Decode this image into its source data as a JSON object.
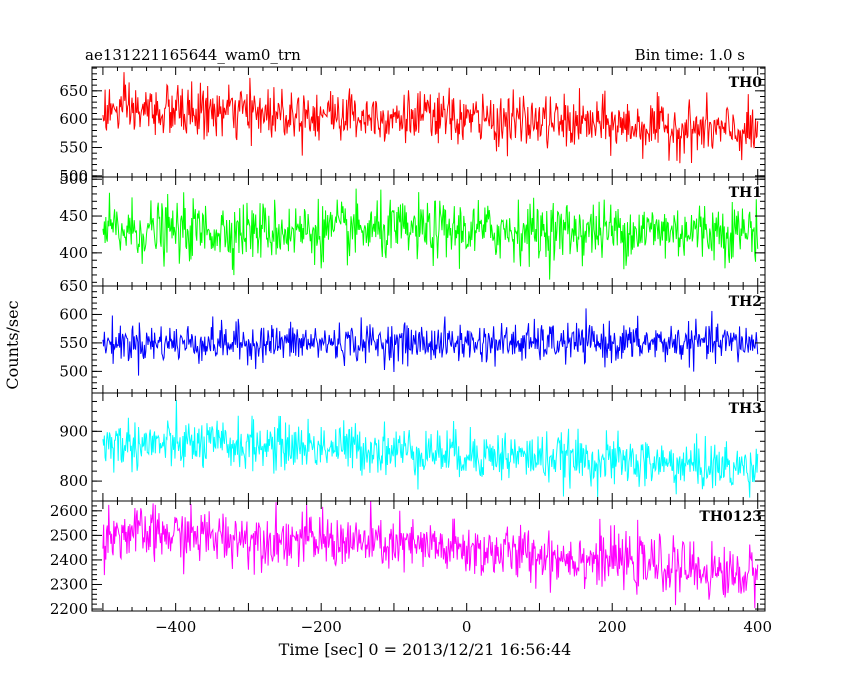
{
  "header": {
    "title": "ae131221165644_wam0_trn",
    "bin_time": "Bin time: 1.0 s"
  },
  "chart_data": {
    "type": "line",
    "xlabel": "Time [sec] 0 = 2013/12/21 16:56:44",
    "ylabel": "Counts/sec",
    "xlim": [
      -515,
      410
    ],
    "x_ticks": [
      -400,
      -200,
      0,
      200,
      400
    ],
    "x_tick_labels": [
      "−400",
      "−200",
      "0",
      "200",
      "400"
    ],
    "x_range": [
      -500,
      400
    ],
    "bin_time": 1.0,
    "panels": [
      {
        "name": "TH0",
        "color": "#ff0000",
        "ylim": [
          498,
          692
        ],
        "yticks": [
          500,
          550,
          600,
          650
        ],
        "trend": [
          [
            -500,
            615
          ],
          [
            -200,
            610
          ],
          [
            0,
            600
          ],
          [
            200,
            590
          ],
          [
            400,
            575
          ]
        ],
        "noise_sd": 23
      },
      {
        "name": "TH1",
        "color": "#00ff00",
        "ylim": [
          355,
          503
        ],
        "yticks": [
          400,
          450,
          500
        ],
        "trend": [
          [
            -500,
            430
          ],
          [
            0,
            430
          ],
          [
            400,
            430
          ]
        ],
        "noise_sd": 20
      },
      {
        "name": "TH2",
        "color": "#0000ff",
        "ylim": [
          462,
          650
        ],
        "yticks": [
          500,
          550,
          600,
          650
        ],
        "trend": [
          [
            -500,
            550
          ],
          [
            0,
            550
          ],
          [
            400,
            550
          ]
        ],
        "noise_sd": 17
      },
      {
        "name": "TH3",
        "color": "#00ffff",
        "ylim": [
          760,
          977
        ],
        "yticks": [
          800,
          900
        ],
        "trend": [
          [
            -500,
            875
          ],
          [
            -200,
            870
          ],
          [
            0,
            855
          ],
          [
            200,
            840
          ],
          [
            400,
            825
          ]
        ],
        "noise_sd": 25
      },
      {
        "name": "TH0123",
        "color": "#ff00ff",
        "ylim": [
          2192,
          2640
        ],
        "yticks": [
          2200,
          2300,
          2400,
          2500,
          2600
        ],
        "trend": [
          [
            -500,
            2510
          ],
          [
            -200,
            2480
          ],
          [
            0,
            2440
          ],
          [
            200,
            2400
          ],
          [
            400,
            2330
          ]
        ],
        "noise_sd": 55
      }
    ]
  }
}
